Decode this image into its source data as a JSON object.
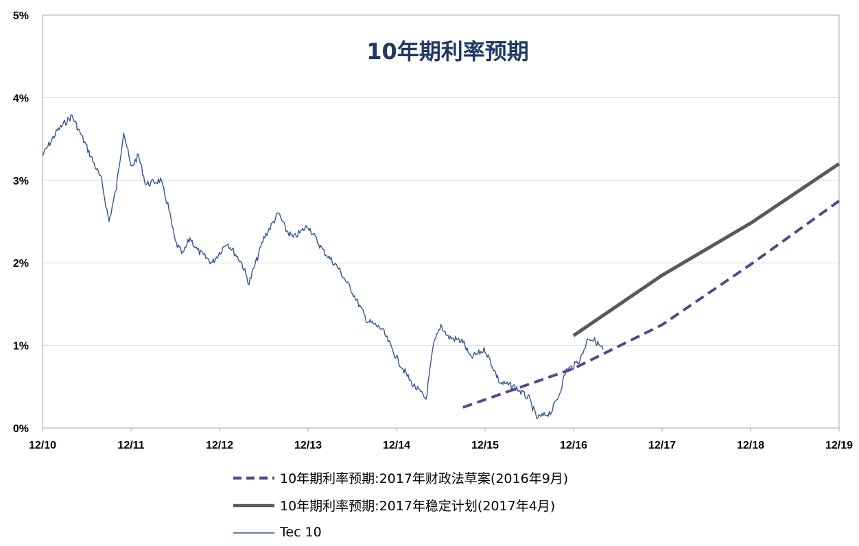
{
  "chart_data": {
    "type": "line",
    "title": "10年期利率预期",
    "title_color": "#1F3864",
    "x_tick_labels": [
      "12/10",
      "12/11",
      "12/12",
      "12/13",
      "12/14",
      "12/15",
      "12/16",
      "12/17",
      "12/18",
      "12/19"
    ],
    "y_tick_labels": [
      "0%",
      "1%",
      "2%",
      "3%",
      "4%",
      "5%"
    ],
    "ylim": [
      0,
      5
    ],
    "xlim": [
      "2010-12",
      "2019-12"
    ],
    "grid": "horizontal",
    "legend_position": "bottom-center",
    "series": [
      {
        "name": "10年期利率预期:2017年财政法草案(2016年9月)",
        "color": "#5B4586",
        "style": "dashed",
        "points": [
          [
            "2015-09",
            0.25
          ],
          [
            "2016-12",
            0.72
          ],
          [
            "2017-12",
            1.25
          ],
          [
            "2018-12",
            1.98
          ],
          [
            "2019-12",
            2.75
          ]
        ]
      },
      {
        "name": "10年期利率预期:2017年稳定计划(2017年4月)",
        "color": "#595959",
        "style": "solid-thick",
        "points": [
          [
            "2016-12",
            1.12
          ],
          [
            "2017-12",
            1.85
          ],
          [
            "2018-12",
            2.48
          ],
          [
            "2019-12",
            3.2
          ]
        ]
      },
      {
        "name": "Tec 10",
        "color": "#2F5597",
        "style": "solid-thin",
        "points": [
          [
            "2010-12",
            3.3
          ],
          [
            "2011-02",
            3.6
          ],
          [
            "2011-04",
            3.78
          ],
          [
            "2011-06",
            3.4
          ],
          [
            "2011-08",
            3.0
          ],
          [
            "2011-09",
            2.5
          ],
          [
            "2011-10",
            2.9
          ],
          [
            "2011-11",
            3.6
          ],
          [
            "2011-12",
            3.15
          ],
          [
            "2012-01",
            3.3
          ],
          [
            "2012-02",
            2.95
          ],
          [
            "2012-04",
            3.0
          ],
          [
            "2012-05",
            2.7
          ],
          [
            "2012-06",
            2.25
          ],
          [
            "2012-07",
            2.1
          ],
          [
            "2012-08",
            2.3
          ],
          [
            "2012-09",
            2.15
          ],
          [
            "2012-11",
            2.0
          ],
          [
            "2013-01",
            2.25
          ],
          [
            "2013-03",
            2.0
          ],
          [
            "2013-04",
            1.75
          ],
          [
            "2013-06",
            2.3
          ],
          [
            "2013-08",
            2.6
          ],
          [
            "2013-09",
            2.4
          ],
          [
            "2013-10",
            2.3
          ],
          [
            "2013-12",
            2.45
          ],
          [
            "2014-02",
            2.15
          ],
          [
            "2014-04",
            1.95
          ],
          [
            "2014-06",
            1.65
          ],
          [
            "2014-08",
            1.3
          ],
          [
            "2014-10",
            1.2
          ],
          [
            "2014-12",
            0.85
          ],
          [
            "2015-02",
            0.55
          ],
          [
            "2015-03",
            0.45
          ],
          [
            "2015-04",
            0.35
          ],
          [
            "2015-05",
            1.0
          ],
          [
            "2015-06",
            1.25
          ],
          [
            "2015-07",
            1.1
          ],
          [
            "2015-09",
            1.05
          ],
          [
            "2015-10",
            0.85
          ],
          [
            "2015-12",
            0.95
          ],
          [
            "2016-02",
            0.55
          ],
          [
            "2016-04",
            0.5
          ],
          [
            "2016-06",
            0.35
          ],
          [
            "2016-07",
            0.12
          ],
          [
            "2016-08",
            0.15
          ],
          [
            "2016-09",
            0.2
          ],
          [
            "2016-10",
            0.4
          ],
          [
            "2016-11",
            0.7
          ],
          [
            "2016-12",
            0.75
          ],
          [
            "2017-01",
            0.85
          ],
          [
            "2017-02",
            1.1
          ],
          [
            "2017-03",
            1.05
          ],
          [
            "2017-04",
            0.95
          ]
        ]
      }
    ]
  }
}
